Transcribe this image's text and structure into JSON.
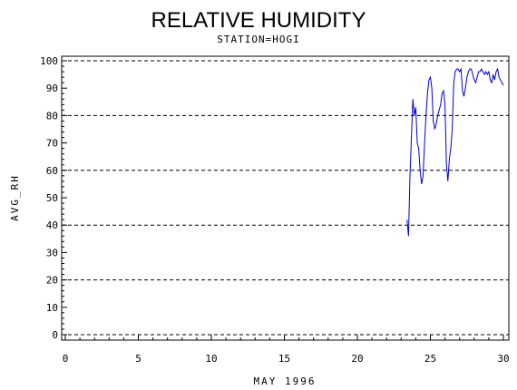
{
  "chart_data": {
    "type": "line",
    "title": "RELATIVE HUMIDITY",
    "subtitle": "STATION=HOGI",
    "xlabel": "MAY 1996",
    "ylabel": "AVG_RH",
    "xlim": [
      0,
      30
    ],
    "ylim": [
      0,
      100
    ],
    "x_ticks": [
      0,
      5,
      10,
      15,
      20,
      25,
      30
    ],
    "y_ticks": [
      0,
      10,
      20,
      30,
      40,
      50,
      60,
      70,
      80,
      90,
      100
    ],
    "reference_lines": [
      0,
      20,
      40,
      60,
      80,
      100
    ],
    "line_color": "#0000cc",
    "series": [
      {
        "x": [
          23.4,
          23.5,
          23.6,
          23.7,
          23.8,
          23.9,
          24.0,
          24.1,
          24.2,
          24.3,
          24.4,
          24.5,
          24.6,
          24.7,
          24.8,
          24.9,
          25.0,
          25.1,
          25.2,
          25.3,
          25.4,
          25.5,
          25.6,
          25.7,
          25.8,
          25.9,
          26.0,
          26.1,
          26.2,
          26.3,
          26.4,
          26.5,
          26.6,
          26.7,
          26.8,
          26.9,
          27.0,
          27.1,
          27.2,
          27.3,
          27.4,
          27.5,
          27.6,
          27.7,
          27.8,
          27.9,
          28.0,
          28.1,
          28.2,
          28.3,
          28.4,
          28.5,
          28.6,
          28.7,
          28.8,
          28.9,
          29.0,
          29.1,
          29.2,
          29.3,
          29.4,
          29.5,
          29.6,
          29.7,
          29.8,
          29.9,
          30.0
        ],
        "values": [
          42,
          36,
          58,
          72,
          86,
          80,
          83,
          70,
          68,
          60,
          55,
          58,
          70,
          80,
          88,
          93,
          94,
          90,
          78,
          75,
          77,
          80,
          82,
          84,
          88,
          89,
          84,
          62,
          56,
          64,
          68,
          75,
          92,
          96,
          97,
          97,
          96,
          97,
          89,
          87,
          90,
          94,
          96,
          97,
          97,
          95,
          93,
          92,
          94,
          96,
          96,
          97,
          96,
          95,
          96,
          95,
          96,
          93,
          92,
          95,
          93,
          96,
          97,
          94,
          93,
          92,
          91
        ]
      }
    ]
  }
}
